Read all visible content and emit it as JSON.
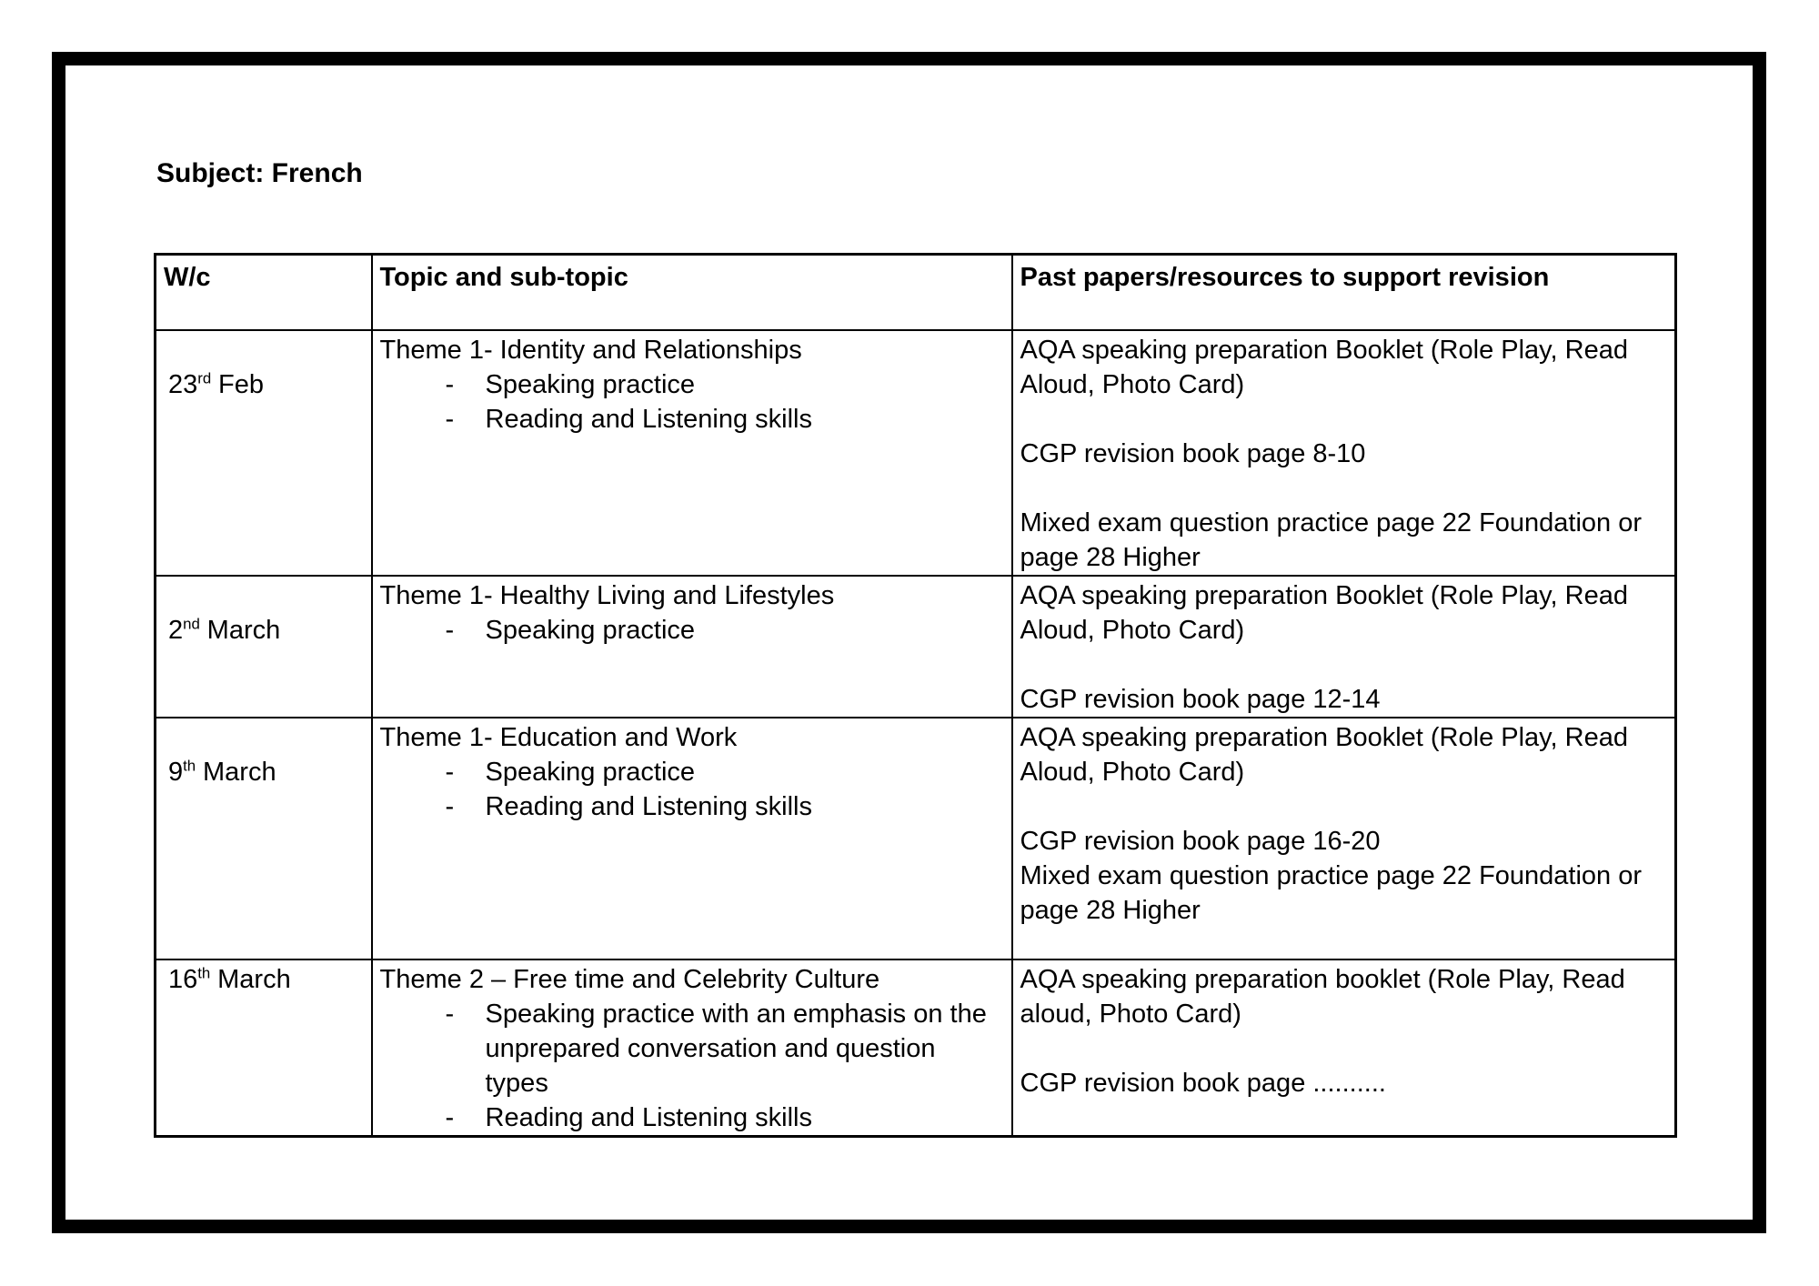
{
  "subject": "Subject: French",
  "glyphs": {
    "bullet_dash": "-"
  },
  "table": {
    "headers": [
      "W/c",
      "Topic and sub-topic",
      "Past papers/resources to support revision"
    ],
    "rows": [
      {
        "week_day": "23",
        "week_ordinal": "rd",
        "week_month": "Feb",
        "topic_title": "Theme 1- Identity and Relationships",
        "topic_bullets": [
          "Speaking practice",
          "Reading and Listening skills"
        ],
        "resources": [
          "AQA speaking preparation Booklet (Role Play, Read Aloud, Photo Card)",
          "",
          "CGP revision book page 8-10",
          "",
          "Mixed exam question practice page 22 Foundation or page 28 Higher"
        ]
      },
      {
        "week_day": "2",
        "week_ordinal": "nd",
        "week_month": "March",
        "topic_title": "Theme 1- Healthy Living and Lifestyles",
        "topic_bullets": [
          "Speaking practice"
        ],
        "resources": [
          "AQA speaking preparation Booklet (Role Play, Read Aloud, Photo Card)",
          "",
          "CGP revision book page 12-14"
        ]
      },
      {
        "week_day": "9",
        "week_ordinal": "th",
        "week_month": "March",
        "topic_title": "Theme 1- Education and Work",
        "topic_bullets": [
          "Speaking practice",
          "Reading and Listening skills"
        ],
        "resources": [
          "AQA speaking preparation Booklet (Role Play, Read Aloud, Photo Card)",
          "",
          "CGP revision book page 16-20",
          "Mixed exam question practice page 22 Foundation or page 28 Higher"
        ]
      },
      {
        "week_day": "16",
        "week_ordinal": "th",
        "week_month": "March",
        "topic_title": "Theme 2 – Free time and Celebrity Culture",
        "topic_bullets": [
          "Speaking practice with an emphasis on the unprepared conversation and question types",
          "Reading and Listening skills"
        ],
        "resources": [
          "AQA speaking preparation booklet (Role Play, Read aloud, Photo Card)",
          "",
          "CGP revision book page .........."
        ]
      }
    ]
  }
}
